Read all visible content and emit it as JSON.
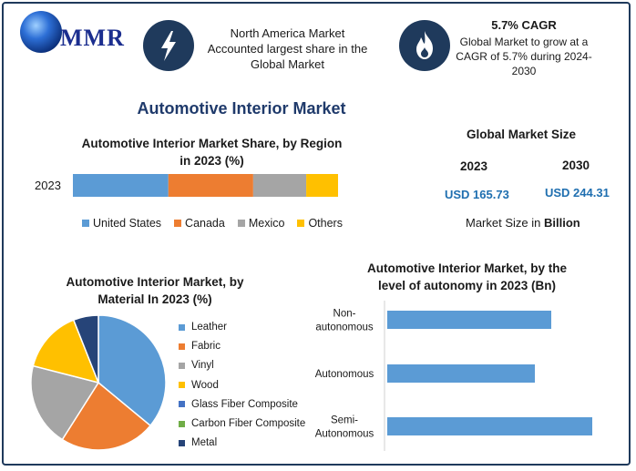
{
  "brand": {
    "logo_text": "MMR"
  },
  "header": {
    "region_text": [
      "North America Market",
      "Accounted largest share in the",
      "Global Market"
    ],
    "cagr_title": "5.7% CAGR",
    "cagr_text": [
      "Global Market to grow at a",
      "CAGR of 5.7% during 2024-",
      "2030"
    ],
    "icons": [
      "lightning-icon",
      "flame-icon"
    ],
    "icon_bg_color": "#1f3a5c"
  },
  "main_title": "Automotive Interior Market",
  "global_size": {
    "title": "Global Market Size",
    "year1": "2023",
    "year2": "2030",
    "value1": "USD 165.73",
    "value2": "USD 244.31",
    "note_prefix": "Market Size in ",
    "note_bold": "Billion"
  },
  "chart_data": [
    {
      "type": "bar",
      "orientation": "horizontal-stacked",
      "title": [
        "Automotive Interior Market Share, by Region",
        "in 2023 (%)"
      ],
      "categories": [
        "2023"
      ],
      "series": [
        {
          "name": "United States",
          "values": [
            36
          ],
          "color": "#5b9bd5"
        },
        {
          "name": "Canada",
          "values": [
            32
          ],
          "color": "#ed7d31"
        },
        {
          "name": "Mexico",
          "values": [
            20
          ],
          "color": "#a5a5a5"
        },
        {
          "name": "Others",
          "values": [
            12
          ],
          "color": "#ffc000"
        }
      ],
      "legend": "bottom"
    },
    {
      "type": "pie",
      "title": [
        "Automotive Interior Market, by",
        "Material In 2023 (%)"
      ],
      "slices": [
        {
          "name": "Leather",
          "value": 36,
          "color": "#5b9bd5"
        },
        {
          "name": "Fabric",
          "value": 23,
          "color": "#ed7d31"
        },
        {
          "name": "Vinyl",
          "value": 20,
          "color": "#a5a5a5"
        },
        {
          "name": "Wood",
          "value": 15,
          "color": "#ffc000"
        },
        {
          "name": "Glass Fiber Composite",
          "value": 0,
          "color": "#4472c4"
        },
        {
          "name": "Carbon Fiber Composite",
          "value": 0,
          "color": "#70ad47"
        },
        {
          "name": "Metal",
          "value": 6,
          "color": "#264478"
        }
      ],
      "legend": "right"
    },
    {
      "type": "bar",
      "orientation": "horizontal",
      "title": [
        "Automotive Interior Market, by the",
        "level of autonomy in 2023 (Bn)"
      ],
      "categories": [
        [
          "Non-",
          "autonomous"
        ],
        [
          "Autonomous"
        ],
        [
          "Semi-",
          "Autonomous"
        ]
      ],
      "values": [
        60,
        54,
        75
      ],
      "xlim": [
        0,
        80
      ],
      "color": "#5b9bd5",
      "grid": false
    }
  ]
}
